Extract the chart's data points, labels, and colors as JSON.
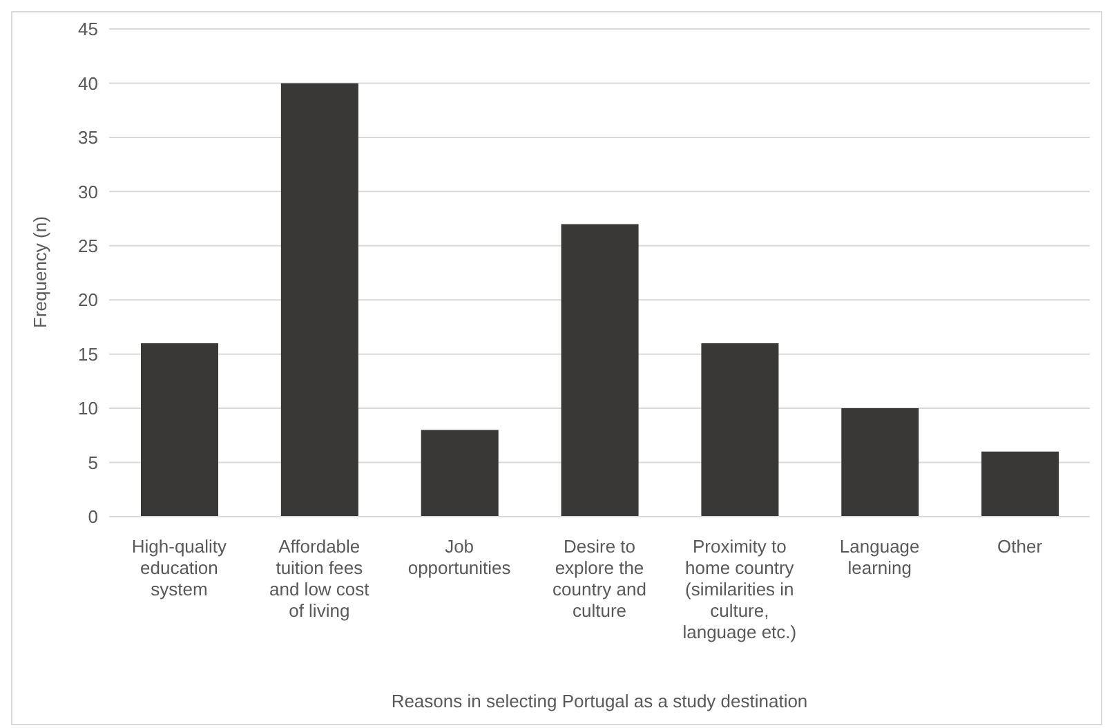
{
  "chart_data": {
    "type": "bar",
    "xlabel": "Reasons in selecting Portugal as a study destination",
    "ylabel": "Frequency (n)",
    "categories": [
      "High-quality education system",
      "Affordable tuition fees and low cost of living",
      "Job opportunities",
      "Desire to explore the country and culture",
      "Proximity to home country (similarities in culture, language etc.)",
      "Language learning",
      "Other"
    ],
    "values": [
      16,
      40,
      8,
      27,
      16,
      10,
      6
    ],
    "color": "#3a3836",
    "ylim": [
      0,
      45
    ],
    "yticks": [
      0,
      5,
      10,
      15,
      20,
      25,
      30,
      35,
      40,
      45
    ],
    "grid": "y",
    "legend": false
  }
}
